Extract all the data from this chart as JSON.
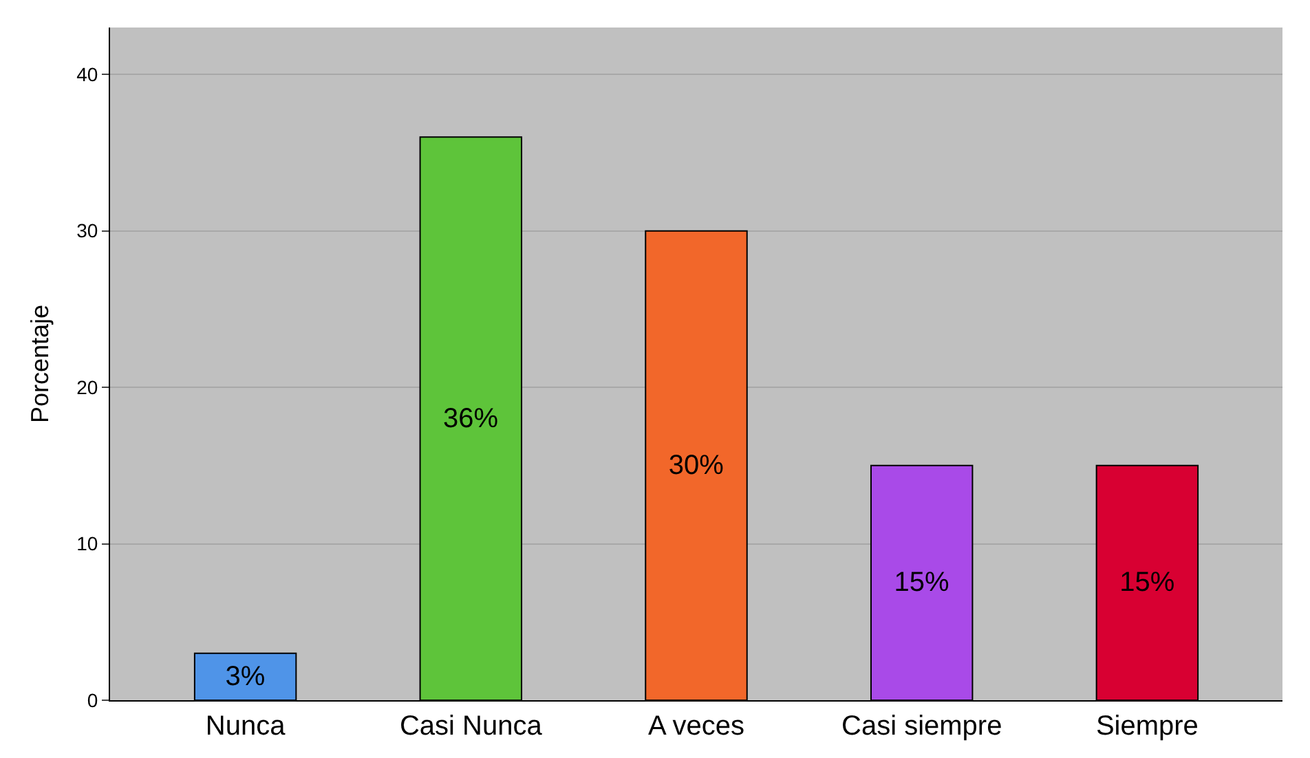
{
  "chart_data": {
    "type": "bar",
    "ylabel": "Porcentaje",
    "categories": [
      "Nunca",
      "Casi Nunca",
      "A veces",
      "Casi siempre",
      "Siempre"
    ],
    "values": [
      3,
      36,
      30,
      15,
      15
    ],
    "value_labels": [
      "3%",
      "36%",
      "30%",
      "15%",
      "15%"
    ],
    "colors": [
      "#4f94e8",
      "#5ec43a",
      "#f2672a",
      "#a94ae8",
      "#d80032"
    ],
    "ylim": [
      0,
      43
    ],
    "yticks": [
      0,
      10,
      20,
      30,
      40
    ],
    "grid": "y",
    "legend": false
  }
}
